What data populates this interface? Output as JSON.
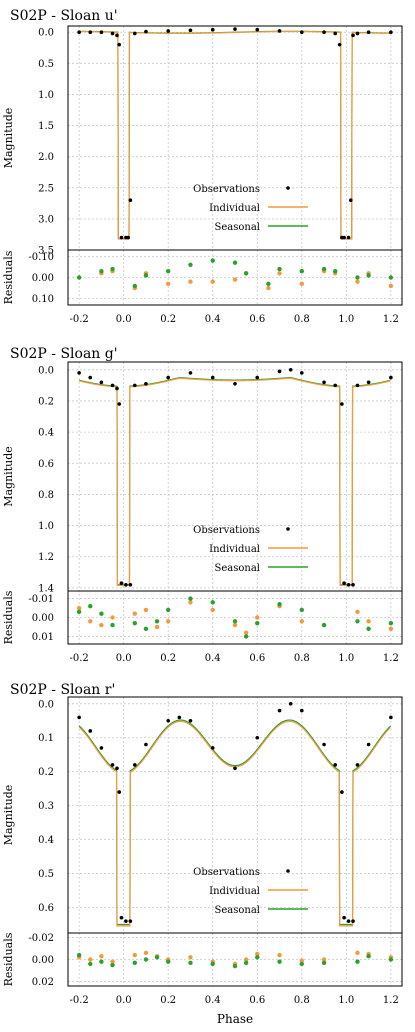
{
  "colors": {
    "observations": "#000000",
    "individual": "#f39a3c",
    "seasonal": "#2ca02c",
    "grid": "#c8c8c8",
    "axes": "#000000"
  },
  "chart_data": [
    {
      "type": "line",
      "title": "S02P - Sloan u'",
      "xlabel": "",
      "ylabel": "Magnitude",
      "residuals_label": "Residuals",
      "xlim": [
        -0.25,
        1.25
      ],
      "ylim": [
        3.5,
        -0.1
      ],
      "y_inverted": true,
      "yticks": [
        "0.0",
        "0.5",
        "1.0",
        "1.5",
        "2.0",
        "2.5",
        "3.0",
        "3.5"
      ],
      "ytick_values": [
        0.0,
        0.5,
        1.0,
        1.5,
        2.0,
        2.5,
        3.0,
        3.5
      ],
      "residuals_ylim": [
        0.13,
        -0.13
      ],
      "residuals_yticks": [
        "-0.10",
        "0.00",
        "0.10"
      ],
      "residuals_ytick_values": [
        -0.1,
        0.0,
        0.1
      ],
      "xticks": [
        "-0.2",
        "0.0",
        "0.2",
        "0.4",
        "0.6",
        "0.8",
        "1.0",
        "1.2"
      ],
      "xtick_values": [
        -0.2,
        0.0,
        0.2,
        0.4,
        0.6,
        0.8,
        1.0,
        1.2
      ],
      "grid": true,
      "legend": {
        "position": "bottom-right",
        "entries": [
          "Observations",
          "Individual",
          "Seasonal"
        ]
      },
      "model": {
        "base": 0.0,
        "depth": 3.32,
        "wave": 0.0,
        "gap_center": 0.0,
        "gap_half": 0.025,
        "shape": "flat"
      },
      "series": [
        {
          "name": "Observations",
          "kind": "points",
          "x": [
            -0.2,
            -0.15,
            -0.1,
            -0.05,
            -0.03,
            -0.02,
            -0.01,
            0.01,
            0.02,
            0.03,
            0.05,
            0.1,
            0.2,
            0.3,
            0.4,
            0.5,
            0.6,
            0.7,
            0.8,
            0.9,
            0.95,
            0.97,
            0.98,
            0.99,
            1.01,
            1.02,
            1.03,
            1.05,
            1.1,
            1.2
          ],
          "y": [
            0.0,
            0.0,
            0.0,
            0.02,
            0.05,
            0.2,
            3.3,
            3.3,
            3.3,
            2.7,
            0.02,
            -0.01,
            -0.02,
            -0.03,
            -0.04,
            -0.05,
            -0.04,
            -0.02,
            0.0,
            0.0,
            0.02,
            0.2,
            3.3,
            3.3,
            3.3,
            2.7,
            0.05,
            0.02,
            0.0,
            0.0
          ]
        },
        {
          "name": "Individual",
          "kind": "line"
        },
        {
          "name": "Seasonal",
          "kind": "line"
        }
      ],
      "residuals": {
        "Individual": {
          "x": [
            -0.2,
            -0.1,
            -0.05,
            0.05,
            0.1,
            0.2,
            0.3,
            0.4,
            0.5,
            0.55,
            0.65,
            0.7,
            0.8,
            0.9,
            0.95,
            1.05,
            1.1,
            1.2
          ],
          "y": [
            0.0,
            -0.02,
            -0.03,
            0.05,
            -0.02,
            0.03,
            0.02,
            0.02,
            0.01,
            -0.02,
            0.05,
            -0.02,
            0.03,
            -0.03,
            -0.02,
            0.02,
            -0.02,
            0.04
          ]
        },
        "Seasonal": {
          "x": [
            -0.2,
            -0.1,
            -0.05,
            0.05,
            0.1,
            0.2,
            0.3,
            0.4,
            0.5,
            0.55,
            0.65,
            0.7,
            0.8,
            0.9,
            0.95,
            1.05,
            1.1,
            1.2
          ],
          "y": [
            0.0,
            -0.03,
            -0.04,
            0.04,
            -0.01,
            -0.03,
            -0.06,
            -0.08,
            -0.07,
            -0.02,
            0.03,
            -0.04,
            -0.03,
            -0.04,
            -0.03,
            0.0,
            -0.01,
            0.0
          ]
        }
      }
    },
    {
      "type": "line",
      "title": "S02P - Sloan g'",
      "xlabel": "",
      "ylabel": "Magnitude",
      "residuals_label": "Residuals",
      "xlim": [
        -0.25,
        1.25
      ],
      "ylim": [
        1.42,
        -0.05
      ],
      "y_inverted": true,
      "yticks": [
        "0.0",
        "0.2",
        "0.4",
        "0.6",
        "0.8",
        "1.0",
        "1.2",
        "1.4"
      ],
      "ytick_values": [
        0.0,
        0.2,
        0.4,
        0.6,
        0.8,
        1.0,
        1.2,
        1.4
      ],
      "residuals_ylim": [
        0.014,
        -0.014
      ],
      "residuals_yticks": [
        "-0.01",
        "0.00",
        "0.01"
      ],
      "residuals_ytick_values": [
        -0.01,
        0.0,
        0.01
      ],
      "xticks": [
        "-0.2",
        "0.0",
        "0.2",
        "0.4",
        "0.6",
        "0.8",
        "1.0",
        "1.2"
      ],
      "xtick_values": [
        -0.2,
        0.0,
        0.2,
        0.4,
        0.6,
        0.8,
        1.0,
        1.2
      ],
      "grid": true,
      "legend": {
        "position": "bottom-right",
        "entries": [
          "Observations",
          "Individual",
          "Seasonal"
        ]
      },
      "model": {
        "base": 0.05,
        "depth": 1.38,
        "wave": 0.04,
        "gap_center": 0.0,
        "gap_half": 0.028,
        "shape": "double"
      },
      "series": [
        {
          "name": "Observations",
          "kind": "points",
          "x": [
            -0.2,
            -0.15,
            -0.1,
            -0.05,
            -0.03,
            -0.02,
            -0.01,
            0.01,
            0.03,
            0.05,
            0.1,
            0.2,
            0.3,
            0.4,
            0.5,
            0.6,
            0.7,
            0.75,
            0.8,
            0.9,
            0.95,
            0.98,
            0.99,
            1.01,
            1.03,
            1.05,
            1.1,
            1.2
          ],
          "y": [
            0.02,
            0.05,
            0.08,
            0.1,
            0.12,
            0.22,
            1.37,
            1.38,
            1.38,
            0.1,
            0.09,
            0.05,
            0.02,
            0.05,
            0.09,
            0.05,
            0.01,
            0.0,
            0.02,
            0.08,
            0.1,
            0.22,
            1.37,
            1.38,
            1.38,
            0.1,
            0.08,
            0.05
          ]
        },
        {
          "name": "Individual",
          "kind": "line"
        },
        {
          "name": "Seasonal",
          "kind": "line"
        }
      ],
      "residuals": {
        "Individual": {
          "x": [
            -0.2,
            -0.15,
            -0.1,
            -0.05,
            0.05,
            0.1,
            0.15,
            0.2,
            0.3,
            0.4,
            0.5,
            0.55,
            0.6,
            0.7,
            0.8,
            0.9,
            1.05,
            1.1,
            1.2
          ],
          "y": [
            -0.005,
            0.002,
            0.004,
            0.0,
            -0.002,
            -0.004,
            0.005,
            0.002,
            -0.008,
            -0.004,
            0.004,
            0.008,
            0.0,
            -0.006,
            0.002,
            0.004,
            -0.003,
            0.002,
            0.006
          ]
        },
        "Seasonal": {
          "x": [
            -0.2,
            -0.15,
            -0.1,
            -0.05,
            0.05,
            0.1,
            0.15,
            0.2,
            0.3,
            0.4,
            0.5,
            0.55,
            0.6,
            0.7,
            0.8,
            0.9,
            1.05,
            1.1,
            1.2
          ],
          "y": [
            -0.003,
            -0.006,
            -0.002,
            0.004,
            0.003,
            0.006,
            0.002,
            -0.004,
            -0.01,
            -0.008,
            0.002,
            0.01,
            0.003,
            -0.007,
            -0.004,
            0.004,
            0.002,
            0.006,
            0.003
          ]
        }
      }
    },
    {
      "type": "line",
      "title": "S02P - Sloan r'",
      "xlabel": "Phase",
      "ylabel": "Magnitude",
      "residuals_label": "Residuals",
      "xlim": [
        -0.25,
        1.25
      ],
      "ylim": [
        0.675,
        -0.02
      ],
      "y_inverted": true,
      "yticks": [
        "0.0",
        "0.1",
        "0.2",
        "0.3",
        "0.4",
        "0.5",
        "0.6"
      ],
      "ytick_values": [
        0.0,
        0.1,
        0.2,
        0.3,
        0.4,
        0.5,
        0.6
      ],
      "residuals_ylim": [
        0.024,
        -0.024
      ],
      "residuals_yticks": [
        "-0.02",
        "0.00",
        "0.02"
      ],
      "residuals_ytick_values": [
        -0.02,
        0.0,
        0.02
      ],
      "xticks": [
        "-0.2",
        "0.0",
        "0.2",
        "0.4",
        "0.6",
        "0.8",
        "1.0",
        "1.2"
      ],
      "xtick_values": [
        -0.2,
        0.0,
        0.2,
        0.4,
        0.6,
        0.8,
        1.0,
        1.2
      ],
      "grid": true,
      "legend": {
        "position": "bottom-right",
        "entries": [
          "Observations",
          "Individual",
          "Seasonal"
        ]
      },
      "model": {
        "base": 0.12,
        "depth": 0.65,
        "wave": 0.08,
        "gap_center": 0.0,
        "gap_half": 0.03,
        "shape": "ellipsoidal"
      },
      "series": [
        {
          "name": "Observations",
          "kind": "points",
          "x": [
            -0.2,
            -0.15,
            -0.1,
            -0.05,
            -0.03,
            -0.02,
            -0.01,
            0.01,
            0.03,
            0.05,
            0.1,
            0.2,
            0.25,
            0.3,
            0.4,
            0.5,
            0.6,
            0.7,
            0.75,
            0.8,
            0.9,
            0.95,
            0.98,
            0.99,
            1.01,
            1.03,
            1.05,
            1.1,
            1.2
          ],
          "y": [
            0.04,
            0.08,
            0.13,
            0.18,
            0.19,
            0.26,
            0.63,
            0.64,
            0.64,
            0.18,
            0.12,
            0.05,
            0.04,
            0.05,
            0.13,
            0.19,
            0.1,
            0.02,
            0.0,
            0.02,
            0.12,
            0.18,
            0.26,
            0.63,
            0.64,
            0.64,
            0.18,
            0.12,
            0.04
          ]
        },
        {
          "name": "Individual",
          "kind": "line"
        },
        {
          "name": "Seasonal",
          "kind": "line"
        }
      ],
      "residuals": {
        "Individual": {
          "x": [
            -0.2,
            -0.15,
            -0.1,
            -0.05,
            0.05,
            0.1,
            0.15,
            0.2,
            0.3,
            0.4,
            0.5,
            0.55,
            0.6,
            0.7,
            0.8,
            0.9,
            1.05,
            1.1,
            1.2
          ],
          "y": [
            -0.002,
            0.0,
            -0.003,
            0.002,
            -0.004,
            -0.006,
            -0.003,
            0.0,
            -0.002,
            0.002,
            0.004,
            0.0,
            -0.005,
            -0.004,
            0.001,
            0.0,
            -0.006,
            -0.005,
            -0.002
          ]
        },
        "Seasonal": {
          "x": [
            -0.2,
            -0.15,
            -0.1,
            -0.05,
            0.05,
            0.1,
            0.15,
            0.2,
            0.3,
            0.4,
            0.5,
            0.55,
            0.6,
            0.7,
            0.8,
            0.9,
            1.05,
            1.1,
            1.2
          ],
          "y": [
            -0.004,
            0.004,
            0.002,
            0.005,
            0.003,
            0.0,
            -0.002,
            0.002,
            0.003,
            0.004,
            0.006,
            0.003,
            -0.002,
            0.002,
            0.004,
            0.003,
            0.002,
            -0.003,
            0.0
          ]
        }
      }
    }
  ]
}
